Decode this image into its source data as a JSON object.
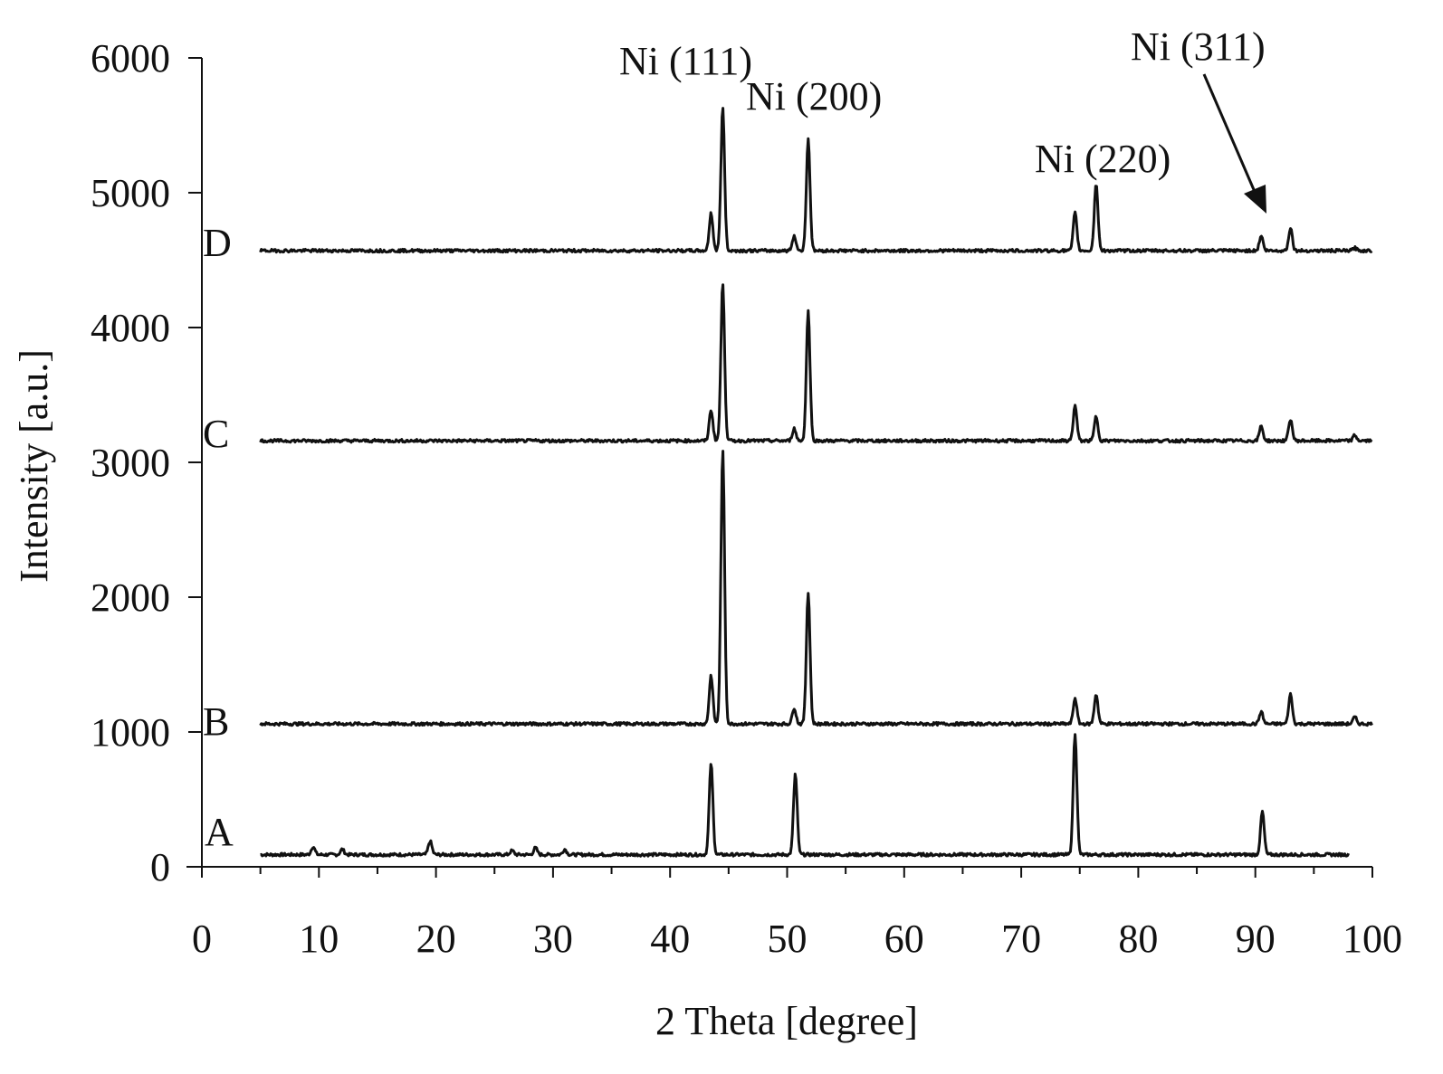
{
  "chart_data": {
    "type": "line",
    "title": "",
    "xlabel": "2 Theta [degree]",
    "ylabel": "Intensity [a.u.]",
    "xlim": [
      0,
      100
    ],
    "ylim": [
      0,
      6000
    ],
    "x_ticks": [
      "0",
      "10",
      "20",
      "30",
      "40",
      "50",
      "60",
      "70",
      "80",
      "90",
      "100"
    ],
    "y_ticks": [
      "0",
      "1000",
      "2000",
      "3000",
      "4000",
      "5000",
      "6000"
    ],
    "grid": false,
    "line_color": "#111111",
    "series": [
      {
        "name": "A",
        "baseline": 90,
        "x_range": [
          5,
          98
        ],
        "peaks": [
          {
            "x": 9.5,
            "height": 60
          },
          {
            "x": 12,
            "height": 40
          },
          {
            "x": 19.5,
            "height": 100
          },
          {
            "x": 26.5,
            "height": 30
          },
          {
            "x": 28.5,
            "height": 50
          },
          {
            "x": 31,
            "height": 40
          },
          {
            "x": 43.5,
            "height": 680
          },
          {
            "x": 50.7,
            "height": 600
          },
          {
            "x": 74.6,
            "height": 900
          },
          {
            "x": 90.6,
            "height": 320
          }
        ]
      },
      {
        "name": "B",
        "baseline": 1060,
        "x_range": [
          5,
          100
        ],
        "peaks": [
          {
            "x": 43.5,
            "height": 360
          },
          {
            "x": 44.5,
            "height": 2030
          },
          {
            "x": 50.6,
            "height": 120
          },
          {
            "x": 51.8,
            "height": 980
          },
          {
            "x": 74.6,
            "height": 190
          },
          {
            "x": 76.4,
            "height": 220
          },
          {
            "x": 90.5,
            "height": 90
          },
          {
            "x": 93.0,
            "height": 220
          },
          {
            "x": 98.5,
            "height": 50
          }
        ]
      },
      {
        "name": "C",
        "baseline": 3160,
        "x_range": [
          5,
          100
        ],
        "peaks": [
          {
            "x": 43.5,
            "height": 230
          },
          {
            "x": 44.5,
            "height": 1170
          },
          {
            "x": 50.6,
            "height": 90
          },
          {
            "x": 51.8,
            "height": 960
          },
          {
            "x": 74.6,
            "height": 260
          },
          {
            "x": 76.4,
            "height": 180
          },
          {
            "x": 90.5,
            "height": 110
          },
          {
            "x": 93.0,
            "height": 160
          },
          {
            "x": 98.5,
            "height": 40
          }
        ]
      },
      {
        "name": "D",
        "baseline": 4570,
        "x_range": [
          5,
          100
        ],
        "peaks": [
          {
            "x": 43.5,
            "height": 280
          },
          {
            "x": 44.5,
            "height": 1060
          },
          {
            "x": 50.6,
            "height": 110
          },
          {
            "x": 51.8,
            "height": 830
          },
          {
            "x": 74.6,
            "height": 280
          },
          {
            "x": 76.4,
            "height": 500
          },
          {
            "x": 90.5,
            "height": 110
          },
          {
            "x": 93.0,
            "height": 170
          },
          {
            "x": 98.5,
            "height": 20
          }
        ]
      }
    ],
    "annotations": [
      {
        "text": "Ni (111)"
      },
      {
        "text": "Ni (200)"
      },
      {
        "text": "Ni (220)"
      },
      {
        "text": "Ni (311)",
        "arrow_to": {
          "x": 91,
          "y": 4830
        }
      }
    ]
  }
}
